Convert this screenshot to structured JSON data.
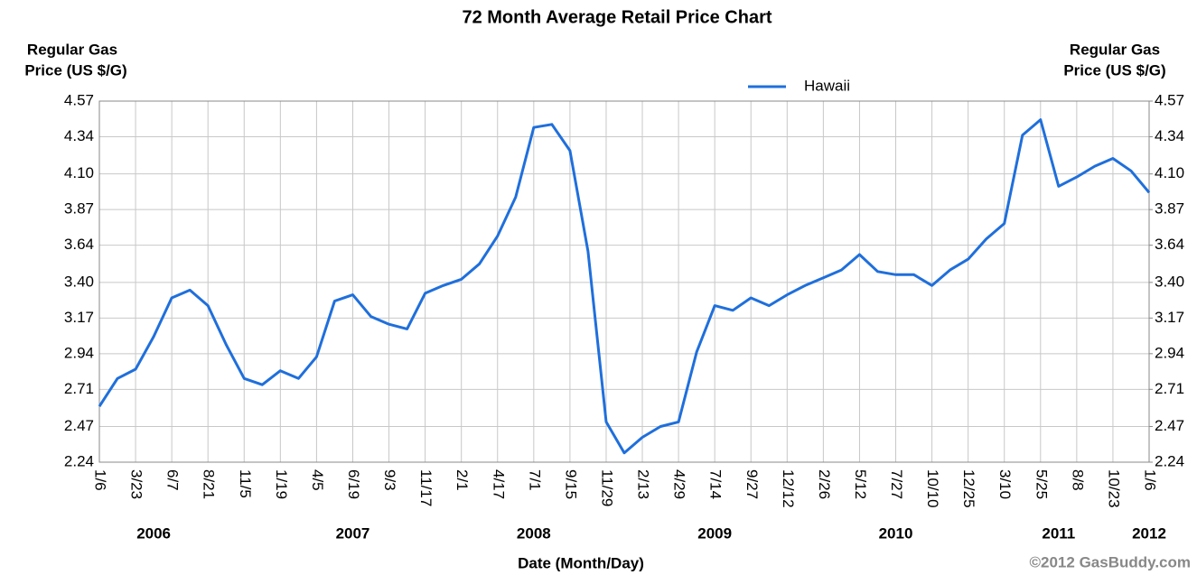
{
  "chart_data": {
    "type": "line",
    "title": "72 Month Average Retail Price Chart",
    "y_label": [
      "Regular Gas",
      "Price (US $/G)"
    ],
    "y2_label": [
      "Regular Gas",
      "Price (US $/G)"
    ],
    "x_label": "Date (Month/Day)",
    "credit": "©2012 GasBuddy.com",
    "categories": [
      "1/6",
      null,
      "3/23",
      null,
      "6/7",
      null,
      "8/21",
      null,
      "11/5",
      null,
      "1/19",
      null,
      "4/5",
      null,
      "6/19",
      null,
      "9/3",
      null,
      "11/17",
      null,
      "2/1",
      null,
      "4/17",
      null,
      "7/1",
      null,
      "9/15",
      null,
      "11/29",
      null,
      "2/13",
      null,
      "4/29",
      null,
      "7/14",
      null,
      "9/27",
      null,
      "12/12",
      null,
      "2/26",
      null,
      "5/12",
      null,
      "7/27",
      null,
      "10/10",
      null,
      "12/25",
      null,
      "3/10",
      null,
      "5/25",
      null,
      "8/8",
      null,
      "10/23",
      null,
      "1/6"
    ],
    "years": [
      {
        "label": "2006",
        "category": 3
      },
      {
        "label": "2007",
        "category": 14
      },
      {
        "label": "2008",
        "category": 24
      },
      {
        "label": "2009",
        "category": 34
      },
      {
        "label": "2010",
        "category": 44
      },
      {
        "label": "2011",
        "category": 53
      },
      {
        "label": "2012",
        "category": 58
      }
    ],
    "series": [
      {
        "name": "Hawaii",
        "color": "#1f6fdc",
        "values": [
          2.6,
          2.78,
          2.84,
          3.05,
          3.3,
          3.35,
          3.25,
          3.0,
          2.78,
          2.74,
          2.83,
          2.78,
          2.92,
          3.28,
          3.32,
          3.18,
          3.13,
          3.1,
          3.33,
          3.38,
          3.42,
          3.52,
          3.7,
          3.95,
          4.4,
          4.42,
          4.25,
          3.6,
          2.5,
          2.3,
          2.4,
          2.47,
          2.5,
          2.95,
          3.25,
          3.22,
          3.3,
          3.25,
          3.32,
          3.38,
          3.43,
          3.48,
          3.58,
          3.47,
          3.45,
          3.45,
          3.38,
          3.48,
          3.55,
          3.68,
          3.78,
          4.35,
          4.45,
          4.02,
          4.08,
          4.15,
          4.2,
          4.12,
          3.98
        ]
      }
    ],
    "ylim": [
      2.24,
      4.57
    ],
    "yticks": [
      2.24,
      2.47,
      2.71,
      2.94,
      3.17,
      {
        "value": 3.4,
        "label": "3.40"
      },
      3.64,
      3.87,
      {
        "value": 4.1,
        "label": "4.10"
      },
      4.34,
      4.57
    ],
    "y2lim": [
      2.24,
      4.57
    ],
    "y2ticks": [
      2.24,
      2.47,
      2.71,
      2.94,
      3.17,
      {
        "value": 3.4,
        "label": "3.40"
      },
      3.64,
      3.87,
      {
        "value": 4.1,
        "label": "4.10"
      },
      4.34,
      4.57
    ],
    "grid": true
  }
}
